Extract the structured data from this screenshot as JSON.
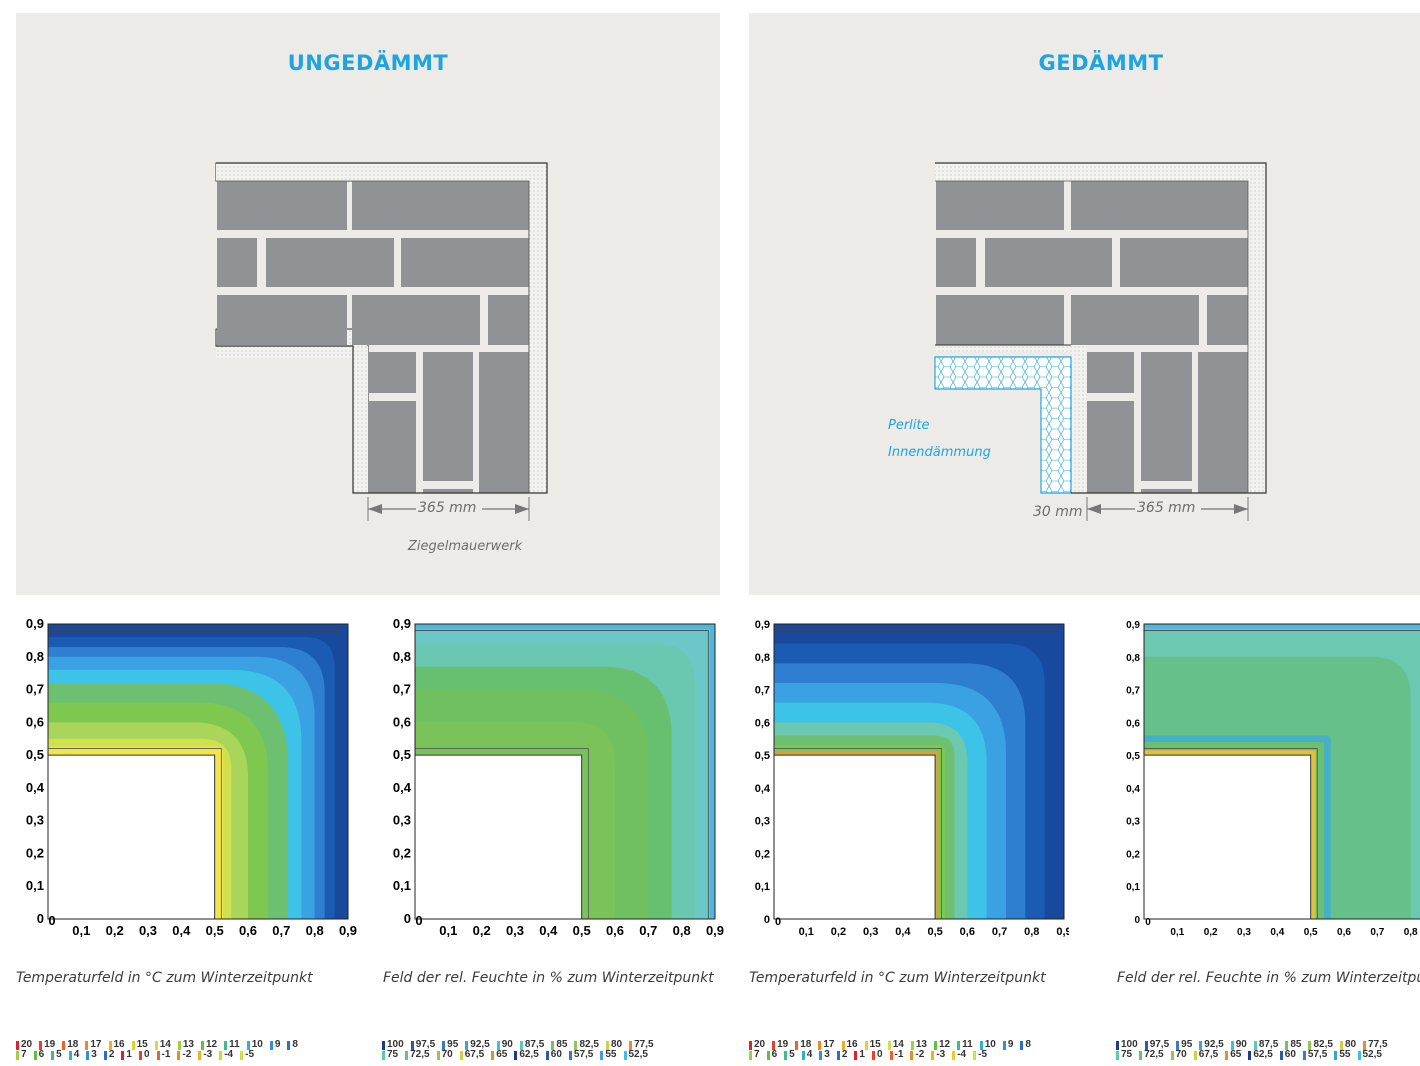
{
  "panels": [
    {
      "title": "UNGEDÄMMT",
      "dimension": "365 mm",
      "material": "Ziegelmauerwerk"
    },
    {
      "title": "GEDÄMMT",
      "dimension": "365 mm",
      "insulation_thickness": "30 mm",
      "insulation_label": [
        "Perlite",
        "Innendämmung"
      ]
    }
  ],
  "chart_data": [
    {
      "type": "heatmap",
      "variable": "temperature",
      "xlim": [
        0,
        0.9
      ],
      "ylim": [
        0,
        0.9
      ],
      "x_ticks": [
        "0",
        "0,1",
        "0,2",
        "0,3",
        "0,4",
        "0,5",
        "0,6",
        "0,7",
        "0,8",
        "0,9"
      ],
      "y_ticks": [
        "0",
        "0,1",
        "0,2",
        "0,3",
        "0,4",
        "0,5",
        "0,6",
        "0,7",
        "0,8",
        "0,9"
      ],
      "caption": "Temperaturfeld in  °C zum Winterzeitpunkt"
    },
    {
      "type": "heatmap",
      "variable": "relative_humidity",
      "xlim": [
        0,
        0.9
      ],
      "ylim": [
        0,
        0.9
      ],
      "x_ticks": [
        "0",
        "0,1",
        "0,2",
        "0,3",
        "0,4",
        "0,5",
        "0,6",
        "0,7",
        "0,8",
        "0,9"
      ],
      "y_ticks": [
        "0",
        "0,1",
        "0,2",
        "0,3",
        "0,4",
        "0,5",
        "0,6",
        "0,7",
        "0,8",
        "0,9"
      ],
      "caption": "Feld der rel. Feuchte in % zum Winterzeitpunkt"
    },
    {
      "type": "heatmap",
      "variable": "temperature",
      "xlim": [
        0,
        0.9
      ],
      "ylim": [
        0,
        0.9
      ],
      "x_ticks": [
        "0",
        "0,1",
        "0,2",
        "0,3",
        "0,4",
        "0,5",
        "0,6",
        "0,7",
        "0,8",
        "0,9"
      ],
      "y_ticks": [
        "0",
        "0,1",
        "0,2",
        "0,3",
        "0,4",
        "0,5",
        "0,6",
        "0,7",
        "0,8",
        "0,9"
      ],
      "caption": "Temperaturfeld in  °C zum Winterzeitpunkt"
    },
    {
      "type": "heatmap",
      "variable": "relative_humidity",
      "xlim": [
        0,
        0.9
      ],
      "ylim": [
        0,
        0.9
      ],
      "x_ticks": [
        "0",
        "0,1",
        "0,2",
        "0,3",
        "0,4",
        "0,5",
        "0,6",
        "0,7",
        "0,8"
      ],
      "y_ticks": [
        "0",
        "0,1",
        "0,2",
        "0,3",
        "0,4",
        "0,5",
        "0,6",
        "0,7",
        "0,8",
        "0,9"
      ],
      "caption": "Feld der rel. Feuchte in % zum Winterzeitpunkt"
    }
  ],
  "legends": {
    "temperature": {
      "row1": [
        "20",
        "19",
        "18",
        "17",
        "16",
        "15",
        "14",
        "13",
        "12",
        "11",
        "10",
        "9",
        "8"
      ],
      "row2": [
        "7",
        "6",
        "5",
        "4",
        "3",
        "2",
        "1",
        "0",
        "-1",
        "-2",
        "-3",
        "-4",
        "-5"
      ]
    },
    "humidity": {
      "row1": [
        "100",
        "97,5",
        "95",
        "92,5",
        "90",
        "87,5",
        "85",
        "82,5",
        "80",
        "77,5"
      ],
      "row2": [
        "75",
        "72,5",
        "70",
        "67,5",
        "65",
        "62,5",
        "60",
        "57,5",
        "55",
        "52,5"
      ]
    }
  },
  "colors": {
    "accent": "#1ea5df",
    "brick": "#919295",
    "mortar": "#ecebe7",
    "temp_scale": [
      "#f0e64a",
      "#d2e050",
      "#a9d65a",
      "#7ec850",
      "#6cc070",
      "#3ec3e8",
      "#3aa2e2",
      "#2f7fd0",
      "#1a5bb4",
      "#174a9e"
    ],
    "humidity_scale": [
      "#7ac25a",
      "#70c060",
      "#66c070",
      "#6ac8b0",
      "#6cc8c8",
      "#50b6dc"
    ]
  }
}
